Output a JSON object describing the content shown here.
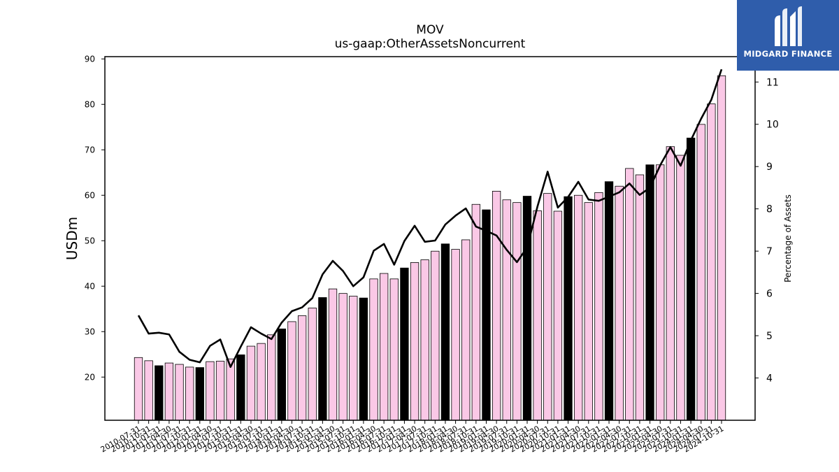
{
  "logo": {
    "text": "MIDGARD FINANCE"
  },
  "chart_data": {
    "type": "bar",
    "title": "MOV",
    "subtitle": "us-gaap:OtherAssetsNoncurrent",
    "ylabel": "USDm",
    "y2label": "Percentage of Assets",
    "ylim": [
      10.5,
      90.5
    ],
    "y2lim": [
      3,
      11.6
    ],
    "yticks": [
      20,
      30,
      40,
      50,
      60,
      70,
      80,
      90
    ],
    "y2ticks": [
      4,
      5,
      6,
      7,
      8,
      9,
      10,
      11
    ],
    "categories": [
      "2010-07-31",
      "2010-10-31",
      "2011-01-31",
      "2011-04-30",
      "2011-07-31",
      "2011-10-31",
      "2012-01-31",
      "2012-04-30",
      "2012-07-31",
      "2012-10-31",
      "2013-01-31",
      "2013-04-30",
      "2013-07-31",
      "2013-10-31",
      "2014-01-31",
      "2014-04-30",
      "2014-07-31",
      "2014-10-31",
      "2015-01-31",
      "2015-04-30",
      "2015-07-31",
      "2015-10-31",
      "2016-01-31",
      "2016-04-30",
      "2016-07-31",
      "2016-10-31",
      "2017-01-31",
      "2017-04-30",
      "2017-07-31",
      "2017-10-31",
      "2018-01-31",
      "2018-04-30",
      "2018-07-31",
      "2018-10-31",
      "2019-01-31",
      "2019-04-30",
      "2019-07-31",
      "2019-10-31",
      "2020-01-31",
      "2020-04-30",
      "2020-07-31",
      "2020-10-31",
      "2021-01-31",
      "2021-04-30",
      "2021-07-31",
      "2021-10-31",
      "2022-01-31",
      "2022-04-30",
      "2022-07-31",
      "2022-10-31",
      "2023-01-31",
      "2023-04-30",
      "2023-07-31",
      "2023-10-31",
      "2024-01-31",
      "2024-04-30",
      "2024-07-31",
      "2024-10-31"
    ],
    "series": [
      {
        "type": "bar",
        "axis": "left",
        "values": [
          24.3,
          23.6,
          22.5,
          23.1,
          22.8,
          22.2,
          22.1,
          23.4,
          23.5,
          24.0,
          24.9,
          26.8,
          27.4,
          29.3,
          30.6,
          32.2,
          33.5,
          35.2,
          37.5,
          39.4,
          38.4,
          37.8,
          37.4,
          41.6,
          42.8,
          41.6,
          44.0,
          45.2,
          45.8,
          47.7,
          49.3,
          48.1,
          50.2,
          58.0,
          56.8,
          60.9,
          59.0,
          58.4,
          59.8,
          56.6,
          60.4,
          56.5,
          59.7,
          60.0,
          58.4,
          60.6,
          63.0,
          62.0,
          65.9,
          64.5,
          66.7,
          66.7,
          70.7,
          68.8,
          72.6,
          75.6,
          80.1,
          86.3
        ],
        "highlight": [
          false,
          false,
          true,
          false,
          false,
          false,
          true,
          false,
          false,
          false,
          true,
          false,
          false,
          false,
          true,
          false,
          false,
          false,
          true,
          false,
          false,
          false,
          true,
          false,
          false,
          false,
          true,
          false,
          false,
          false,
          true,
          false,
          false,
          false,
          true,
          false,
          false,
          false,
          true,
          false,
          false,
          false,
          true,
          false,
          false,
          false,
          true,
          false,
          false,
          false,
          true,
          false,
          false,
          false,
          true,
          false,
          false,
          false
        ]
      },
      {
        "type": "line",
        "axis": "right",
        "values": [
          5.48,
          5.05,
          5.07,
          5.03,
          4.62,
          4.43,
          4.37,
          4.76,
          4.91,
          4.26,
          4.74,
          5.2,
          5.05,
          4.92,
          5.31,
          5.58,
          5.67,
          5.89,
          6.45,
          6.77,
          6.53,
          6.17,
          6.38,
          7.01,
          7.17,
          6.68,
          7.24,
          7.6,
          7.22,
          7.25,
          7.63,
          7.84,
          8.01,
          7.58,
          7.48,
          7.37,
          7.03,
          6.74,
          7.09,
          8.05,
          8.88,
          8.03,
          8.28,
          8.64,
          8.22,
          8.19,
          8.29,
          8.39,
          8.6,
          8.33,
          8.5,
          9.03,
          9.46,
          9.02,
          9.62,
          10.13,
          10.58,
          11.3
        ]
      }
    ],
    "colors": {
      "bar": "#fac8e6",
      "bar_highlight": "#000000",
      "bar_edge": "#000000",
      "line": "#000000",
      "logo_bg": "#2f5dab"
    },
    "grid": false,
    "legend": "none"
  }
}
